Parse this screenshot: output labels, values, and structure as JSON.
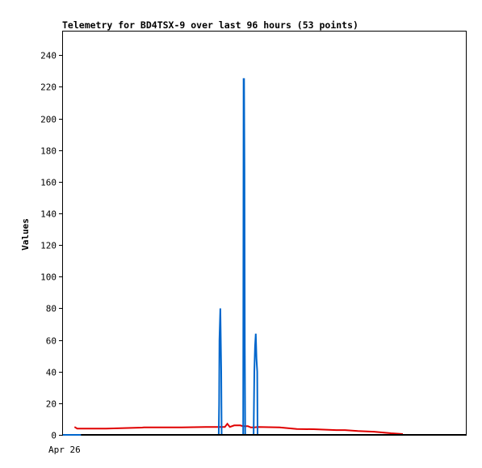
{
  "chart_data": {
    "type": "line",
    "title": "Telemetry for BD4TSX-9 over last 96 hours (53 points)",
    "xlabel": "",
    "ylabel": "Values",
    "ylim": [
      0,
      255
    ],
    "yticks": [
      0,
      20,
      40,
      60,
      80,
      100,
      120,
      140,
      160,
      180,
      200,
      220,
      240
    ],
    "x_tick_label": "Apr 26",
    "grid": false,
    "legend": "none",
    "series": [
      {
        "color": "#e00000",
        "points": [
          [
            3.2,
            5
          ],
          [
            3.95,
            4
          ],
          [
            12.0,
            4
          ],
          [
            22.0,
            4.6
          ],
          [
            22.5,
            4.7
          ],
          [
            33.0,
            4.7
          ],
          [
            40.0,
            5
          ],
          [
            45.0,
            5
          ],
          [
            45.7,
            7
          ],
          [
            46.4,
            5
          ],
          [
            47.6,
            6
          ],
          [
            48.6,
            6
          ],
          [
            49.3,
            6
          ],
          [
            50.0,
            5.5
          ],
          [
            51.4,
            5.5
          ],
          [
            52.2,
            4.7
          ],
          [
            53.2,
            4.7
          ],
          [
            54.2,
            5
          ],
          [
            60.2,
            4.7
          ],
          [
            65.0,
            3.7
          ],
          [
            69.7,
            3.6
          ],
          [
            76.0,
            3.0
          ],
          [
            78.4,
            3.0
          ],
          [
            82.0,
            2.4
          ],
          [
            86.5,
            2.0
          ],
          [
            91.2,
            1.0
          ],
          [
            94.5,
            0.5
          ]
        ]
      },
      {
        "color": "#0066cc",
        "points": [
          [
            0,
            0
          ],
          [
            43.3,
            0
          ],
          [
            43.4,
            20
          ],
          [
            43.5,
            60
          ],
          [
            43.75,
            80
          ],
          [
            44.0,
            40
          ],
          [
            44.1,
            0
          ],
          [
            50.1,
            0
          ],
          [
            50.2,
            225
          ],
          [
            50.35,
            225
          ],
          [
            50.45,
            168
          ],
          [
            50.55,
            56
          ],
          [
            50.65,
            0
          ],
          [
            53.0,
            0
          ],
          [
            53.2,
            40
          ],
          [
            53.4,
            56
          ],
          [
            53.6,
            64
          ],
          [
            53.8,
            48
          ],
          [
            54.0,
            40
          ],
          [
            54.1,
            0
          ],
          [
            112.0,
            0
          ]
        ]
      },
      {
        "color": "#000000",
        "points": [
          [
            5.0,
            0
          ],
          [
            112.0,
            0
          ]
        ]
      }
    ]
  }
}
